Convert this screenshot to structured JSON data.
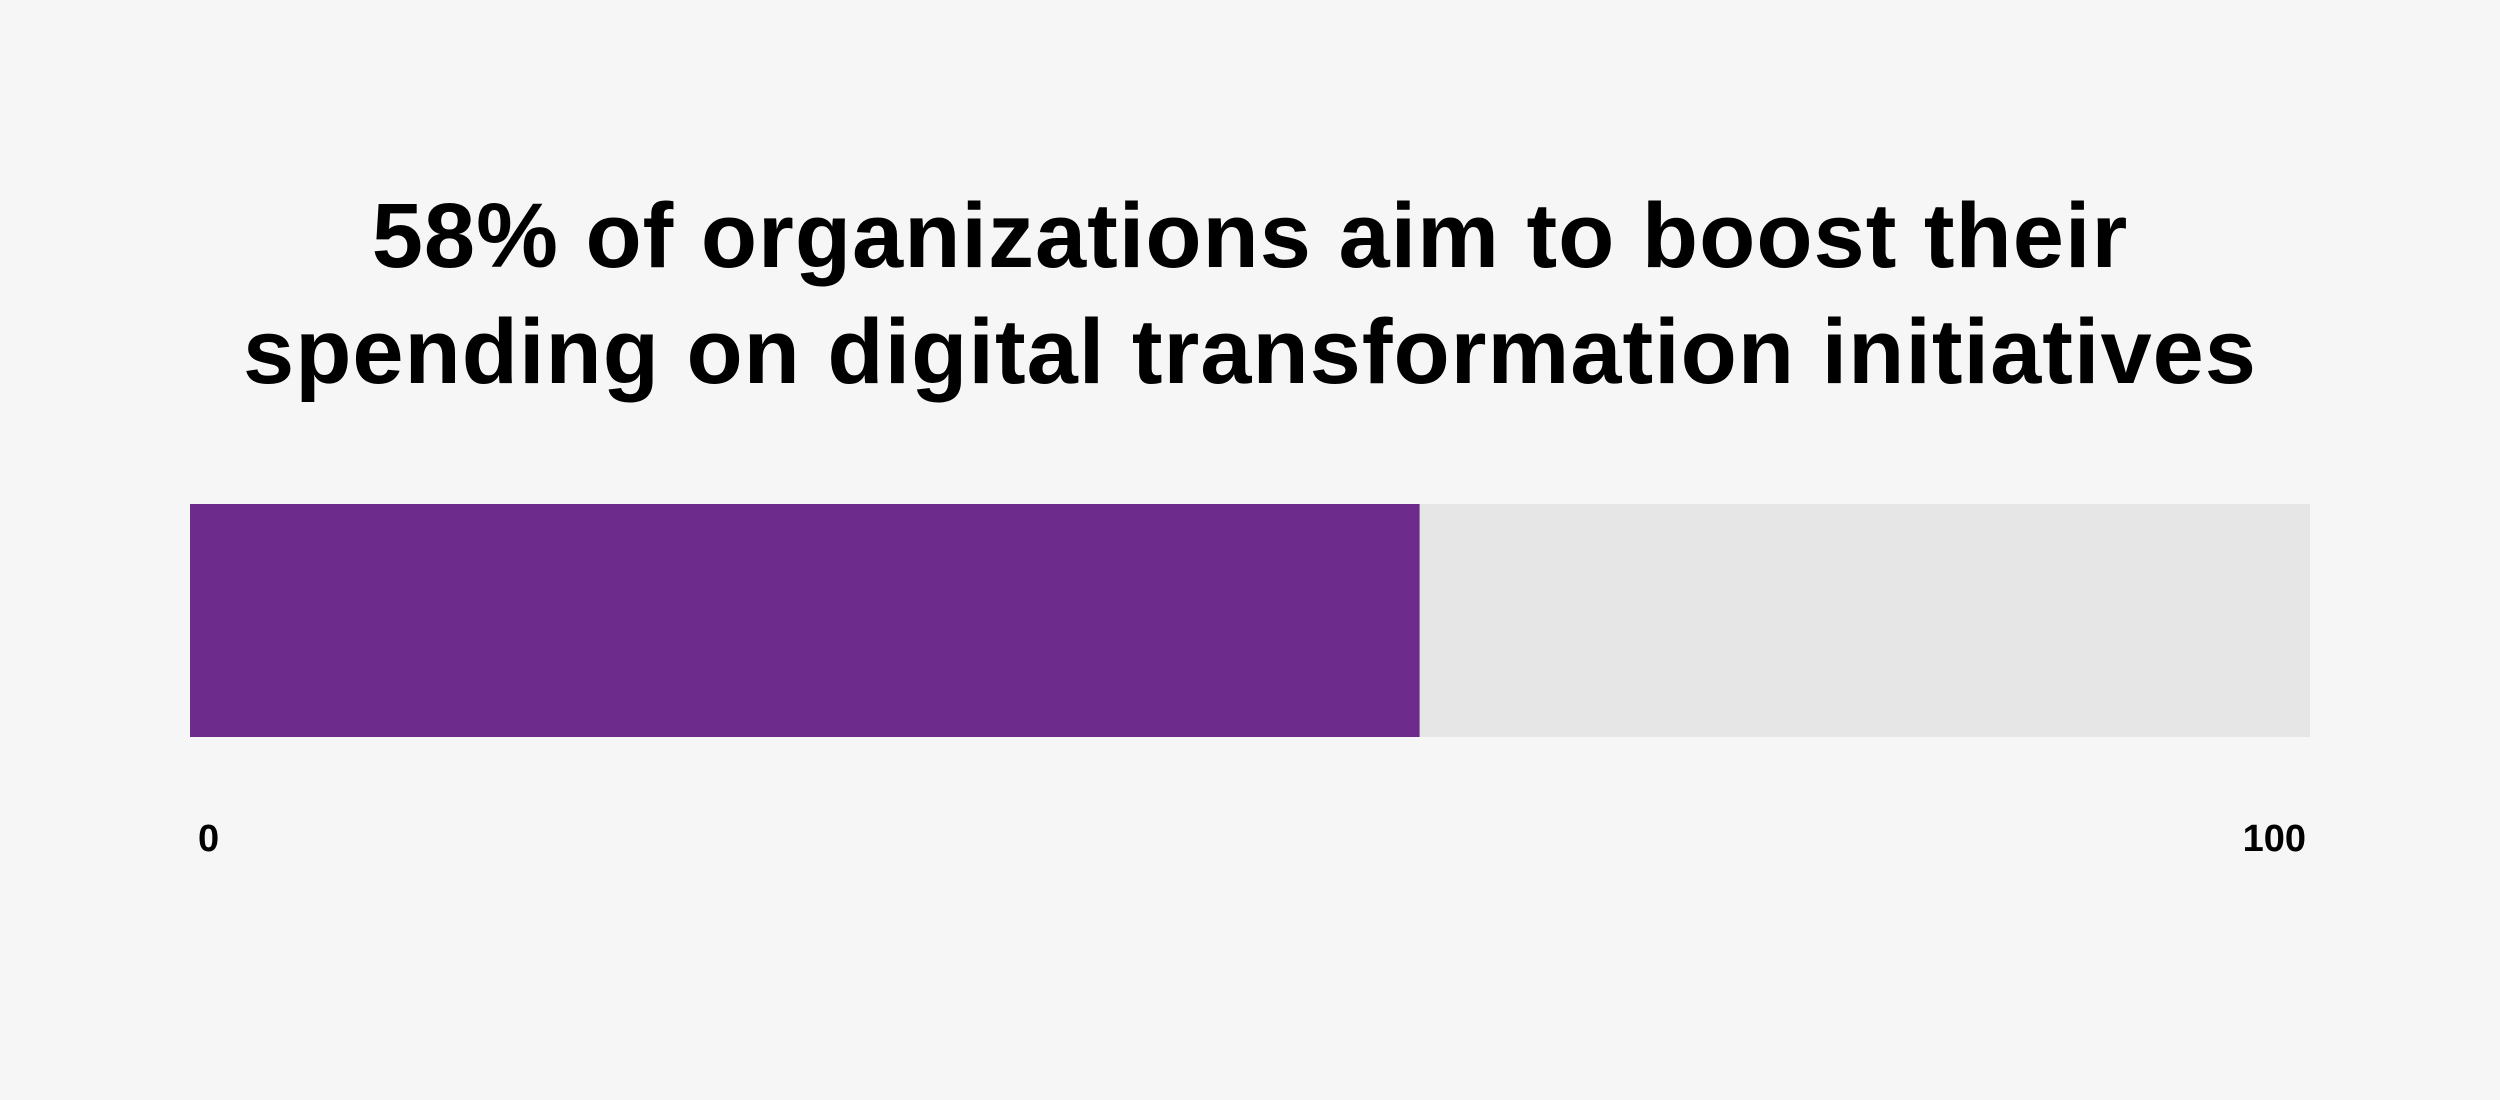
{
  "chart_data": {
    "type": "bar",
    "orientation": "horizontal",
    "title_lines": [
      "58% of organizations aim to boost their",
      "spending on digital transformation initiatives"
    ],
    "values": [
      58
    ],
    "xlim": [
      0,
      100
    ],
    "tick_labels": [
      "0",
      "100"
    ],
    "grid": false,
    "colors": {
      "fill": "#6d2c8b",
      "track": "#e6e6e6",
      "background": "#f6f6f6"
    }
  }
}
